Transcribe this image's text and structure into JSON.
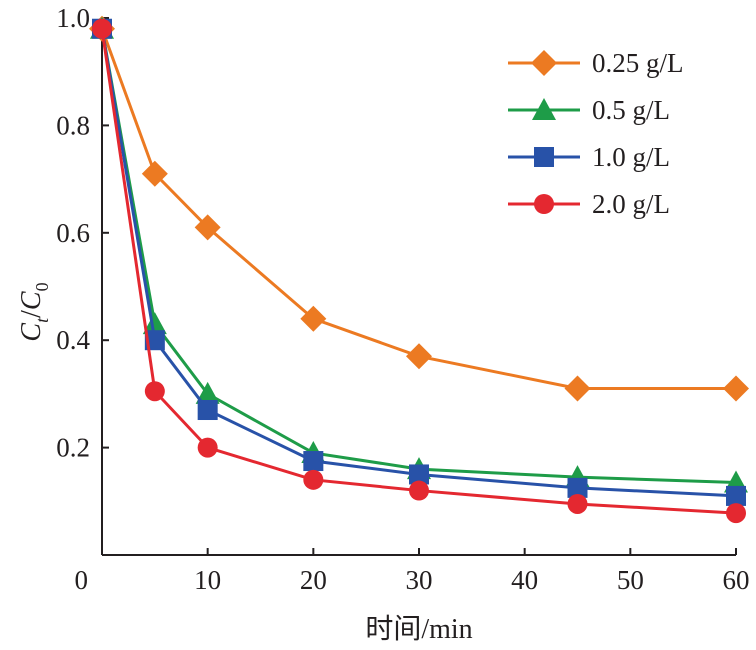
{
  "chart_data": {
    "type": "line",
    "xlabel": "时间/min",
    "ylabel": {
      "main": "C",
      "sub_t": "t",
      "slash": "/",
      "main2": "C",
      "sub_0": "0"
    },
    "xlim": [
      0,
      60
    ],
    "ylim": [
      0,
      1.0
    ],
    "xticks": [
      10,
      20,
      30,
      40,
      50,
      60
    ],
    "xtick_labels": [
      "10",
      "20",
      "30",
      "40",
      "50",
      "60"
    ],
    "yticks": [
      0.2,
      0.4,
      0.6,
      0.8,
      1.0
    ],
    "ytick_labels": [
      "0.2",
      "0.4",
      "0.6",
      "0.8",
      "1.0"
    ],
    "origin_label": "0",
    "grid": false,
    "legend_position": "top-right",
    "x": [
      0,
      5,
      10,
      20,
      30,
      45,
      60
    ],
    "series": [
      {
        "name": "0.25 g/L",
        "color": "#ec7a22",
        "marker": "diamond",
        "values": [
          0.98,
          0.71,
          0.61,
          0.44,
          0.37,
          0.31,
          0.31
        ]
      },
      {
        "name": "0.5 g/L",
        "color": "#1e9c48",
        "marker": "triangle",
        "values": [
          0.98,
          0.43,
          0.3,
          0.19,
          0.16,
          0.145,
          0.135
        ]
      },
      {
        "name": "1.0 g/L",
        "color": "#2852a8",
        "marker": "square",
        "values": [
          0.98,
          0.4,
          0.27,
          0.175,
          0.15,
          0.125,
          0.11
        ]
      },
      {
        "name": "2.0 g/L",
        "color": "#e42830",
        "marker": "circle",
        "values": [
          0.98,
          0.305,
          0.2,
          0.14,
          0.12,
          0.095,
          0.078
        ]
      }
    ]
  }
}
